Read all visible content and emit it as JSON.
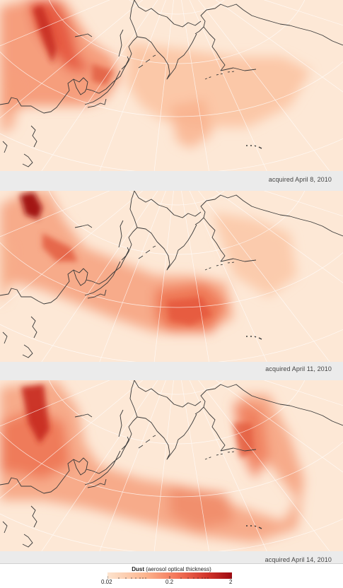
{
  "panels": [
    {
      "caption": "acquired April 8, 2010"
    },
    {
      "caption": "acquired April 11, 2010"
    },
    {
      "caption": "acquired April 14, 2010"
    }
  ],
  "legend": {
    "title": "Dust",
    "subtitle": "(aerosol optical thickness)",
    "min_label": "0.02",
    "mid_label": "0.2",
    "max_label": "2",
    "scale": "log",
    "colors": [
      "#fde4cf",
      "#fbb690",
      "#f4775a",
      "#d2352b",
      "#9e0a12"
    ]
  },
  "colors": {
    "background": "#fde8d6",
    "coastline": "#3a3a3a",
    "graticule": "#ffffff",
    "dust_low": "#fbc6a4",
    "dust_mid": "#f4775a",
    "dust_high": "#b1151b"
  }
}
